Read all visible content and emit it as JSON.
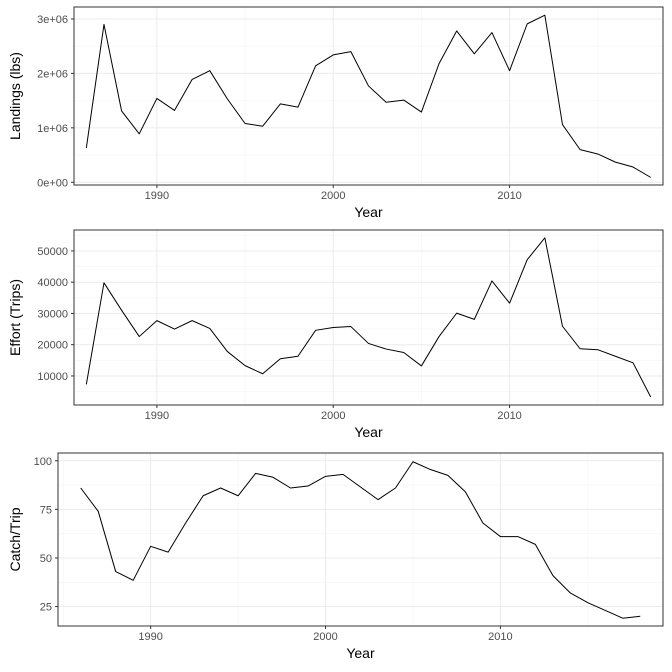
{
  "chart_data": [
    {
      "type": "line",
      "xlabel": "Year",
      "ylabel": "Landings (lbs)",
      "xlim": [
        1985.3,
        2018.7
      ],
      "ylim": [
        -50000,
        3220000
      ],
      "x_ticks": [
        1990,
        2000,
        2010
      ],
      "x_tick_labels": [
        "1990",
        "2000",
        "2010"
      ],
      "y_ticks": [
        0,
        1000000,
        2000000,
        3000000
      ],
      "y_tick_labels": [
        "0e+00",
        "1e+06",
        "2e+06",
        "3e+06"
      ],
      "grid": true,
      "series": [
        {
          "x": [
            1986,
            1987,
            1988,
            1989,
            1990,
            1991,
            1992,
            1993,
            1994,
            1995,
            1996,
            1997,
            1998,
            1999,
            2000,
            2001,
            2002,
            2003,
            2004,
            2005,
            2006,
            2007,
            2008,
            2009,
            2010,
            2011,
            2012,
            2013,
            2014,
            2015,
            2016,
            2017,
            2018
          ],
          "y": [
            630000,
            2900000,
            1310000,
            890000,
            1540000,
            1320000,
            1890000,
            2050000,
            1530000,
            1080000,
            1030000,
            1440000,
            1380000,
            2140000,
            2340000,
            2400000,
            1770000,
            1470000,
            1510000,
            1290000,
            2180000,
            2780000,
            2360000,
            2750000,
            2050000,
            2910000,
            3070000,
            1060000,
            600000,
            520000,
            370000,
            280000,
            90000
          ]
        }
      ]
    },
    {
      "type": "line",
      "xlabel": "Year",
      "ylabel": "Effort (Trips)",
      "xlim": [
        1985.3,
        2018.7
      ],
      "ylim": [
        700,
        56700
      ],
      "x_ticks": [
        1990,
        2000,
        2010
      ],
      "x_tick_labels": [
        "1990",
        "2000",
        "2010"
      ],
      "y_ticks": [
        10000,
        20000,
        30000,
        40000,
        50000
      ],
      "y_tick_labels": [
        "10000",
        "20000",
        "30000",
        "40000",
        "50000"
      ],
      "grid": true,
      "series": [
        {
          "x": [
            1986,
            1987,
            1988,
            1989,
            1990,
            1991,
            1992,
            1993,
            1994,
            1995,
            1996,
            1997,
            1998,
            1999,
            2000,
            2001,
            2002,
            2003,
            2004,
            2005,
            2006,
            2007,
            2008,
            2009,
            2010,
            2011,
            2012,
            2013,
            2014,
            2015,
            2016,
            2017,
            2018
          ],
          "y": [
            7300,
            39800,
            31000,
            22600,
            27700,
            25000,
            27700,
            25200,
            17800,
            13300,
            10700,
            15500,
            16300,
            24600,
            25500,
            25800,
            20400,
            18600,
            17500,
            13200,
            22600,
            30100,
            28100,
            40400,
            33300,
            47200,
            54200,
            25900,
            18700,
            18400,
            16300,
            14200,
            3300
          ]
        }
      ]
    },
    {
      "type": "line",
      "xlabel": "Year",
      "ylabel": "Catch/Trip",
      "xlim": [
        1984.7,
        2019.3
      ],
      "ylim": [
        15,
        104
      ],
      "x_ticks": [
        1990,
        2000,
        2010
      ],
      "x_tick_labels": [
        "1990",
        "2000",
        "2010"
      ],
      "y_ticks": [
        25,
        50,
        75,
        100
      ],
      "y_tick_labels": [
        "25",
        "50",
        "75",
        "100"
      ],
      "grid": true,
      "series": [
        {
          "x": [
            1986,
            1987,
            1988,
            1989,
            1990,
            1991,
            1992,
            1993,
            1994,
            1995,
            1996,
            1997,
            1998,
            1999,
            2000,
            2001,
            2002,
            2003,
            2004,
            2005,
            2006,
            2007,
            2008,
            2009,
            2010,
            2011,
            2012,
            2013,
            2014,
            2015,
            2016,
            2017,
            2018
          ],
          "y": [
            86,
            74,
            43,
            38.5,
            56,
            53,
            68,
            82,
            86,
            82,
            93.5,
            91.5,
            86,
            87,
            92,
            93,
            86.5,
            80,
            86,
            99.5,
            95.5,
            92.5,
            84,
            68,
            61,
            61,
            57,
            41,
            32,
            27,
            23,
            19,
            20
          ]
        }
      ]
    }
  ]
}
